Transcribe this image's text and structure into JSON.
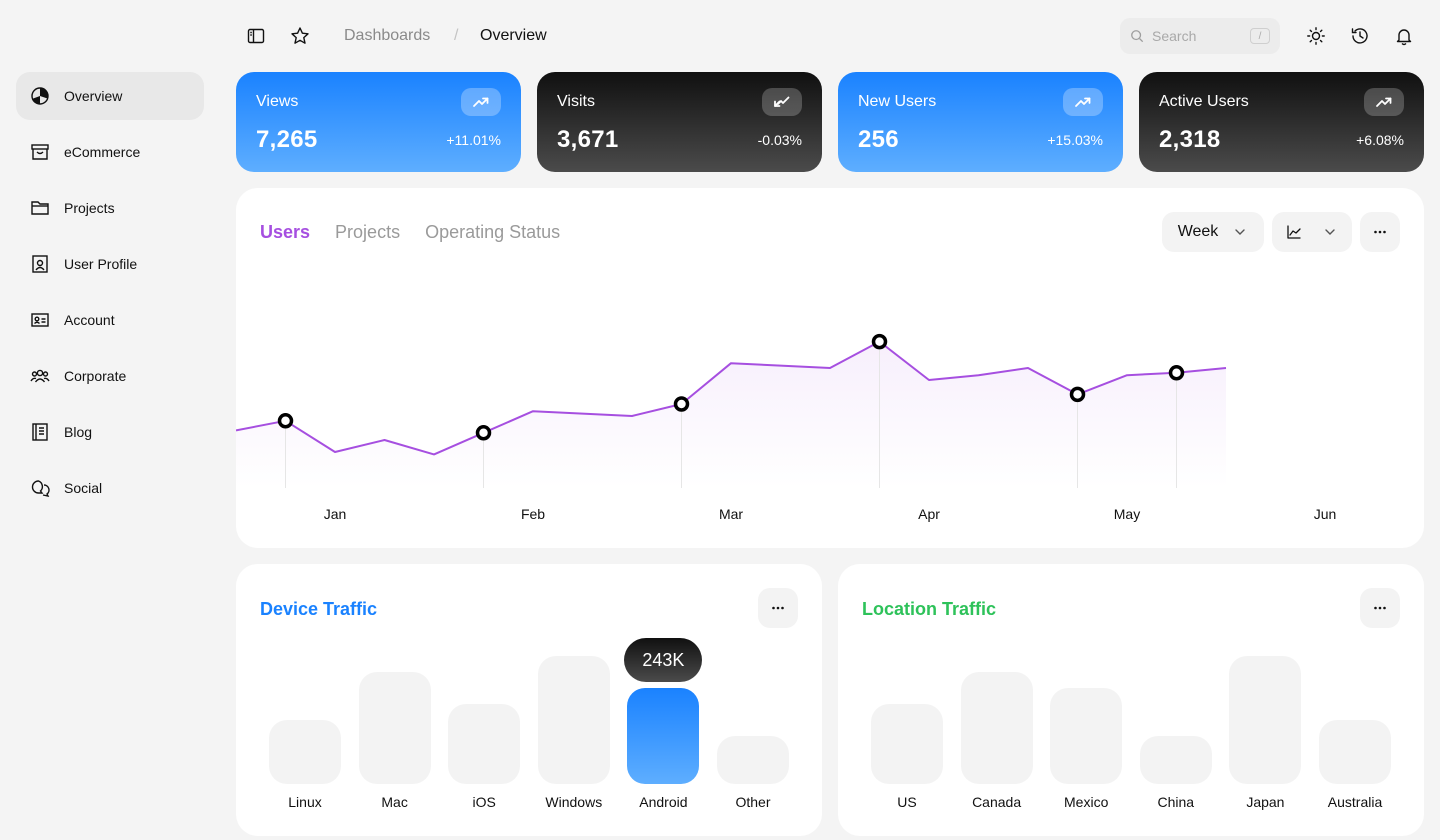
{
  "breadcrumb": {
    "parent": "Dashboards",
    "separator": "/",
    "current": "Overview"
  },
  "search": {
    "placeholder": "Search",
    "shortcut": "/"
  },
  "sidebar": {
    "items": [
      {
        "label": "Overview",
        "icon": "pie-chart-icon",
        "active": true
      },
      {
        "label": "eCommerce",
        "icon": "shopping-box-icon"
      },
      {
        "label": "Projects",
        "icon": "folder-icon"
      },
      {
        "label": "User Profile",
        "icon": "id-badge-icon"
      },
      {
        "label": "Account",
        "icon": "id-card-icon"
      },
      {
        "label": "Corporate",
        "icon": "users-group-icon"
      },
      {
        "label": "Blog",
        "icon": "notebook-icon"
      },
      {
        "label": "Social",
        "icon": "chat-bubbles-icon"
      }
    ]
  },
  "stats": [
    {
      "label": "Views",
      "value": "7,265",
      "delta": "+11.01%",
      "trend": "up",
      "style": "blue"
    },
    {
      "label": "Visits",
      "value": "3,671",
      "delta": "-0.03%",
      "trend": "down",
      "style": "dark"
    },
    {
      "label": "New Users",
      "value": "256",
      "delta": "+15.03%",
      "trend": "up",
      "style": "blue"
    },
    {
      "label": "Active Users",
      "value": "2,318",
      "delta": "+6.08%",
      "trend": "up",
      "style": "dark"
    }
  ],
  "main_chart": {
    "tabs": [
      "Users",
      "Projects",
      "Operating Status"
    ],
    "active_tab": "Users",
    "range_label": "Week",
    "line_color": "#a64fe0"
  },
  "device_traffic": {
    "title": "Device Traffic",
    "title_color": "#1a82ff",
    "tooltip": "243K"
  },
  "location_traffic": {
    "title": "Location Traffic",
    "title_color": "#2ec25a"
  },
  "chart_data": [
    {
      "type": "line",
      "categories": [
        "Jan",
        "Feb",
        "Mar",
        "Apr",
        "May",
        "Jun"
      ],
      "x": [
        0.5,
        0.75,
        1,
        1.25,
        1.5,
        1.75,
        2,
        2.25,
        2.5,
        2.75,
        3,
        3.25,
        3.5,
        3.75,
        4,
        4.25,
        4.5,
        4.75,
        5,
        5.25,
        5.5
      ],
      "series": [
        {
          "values": [
            0.48,
            0.56,
            0.3,
            0.4,
            0.28,
            0.46,
            0.64,
            0.62,
            0.6,
            0.7,
            1.04,
            1.02,
            1.0,
            1.22,
            0.9,
            0.94,
            1.0,
            0.78,
            0.94,
            0.96,
            1.0
          ]
        }
      ],
      "highlighted_points": [
        1,
        5,
        9,
        13,
        17,
        19
      ],
      "ylim": [
        0,
        1.4
      ],
      "grid": false
    },
    {
      "type": "bar",
      "categories": [
        "Linux",
        "Mac",
        "iOS",
        "Windows",
        "Android",
        "Other"
      ],
      "values": [
        64,
        112,
        80,
        128,
        96,
        48
      ],
      "highlighted": "Android",
      "ylim": [
        0,
        128
      ]
    },
    {
      "type": "bar",
      "categories": [
        "US",
        "Canada",
        "Mexico",
        "China",
        "Japan",
        "Australia"
      ],
      "values": [
        80,
        112,
        96,
        48,
        128,
        64
      ],
      "ylim": [
        0,
        128
      ]
    }
  ]
}
